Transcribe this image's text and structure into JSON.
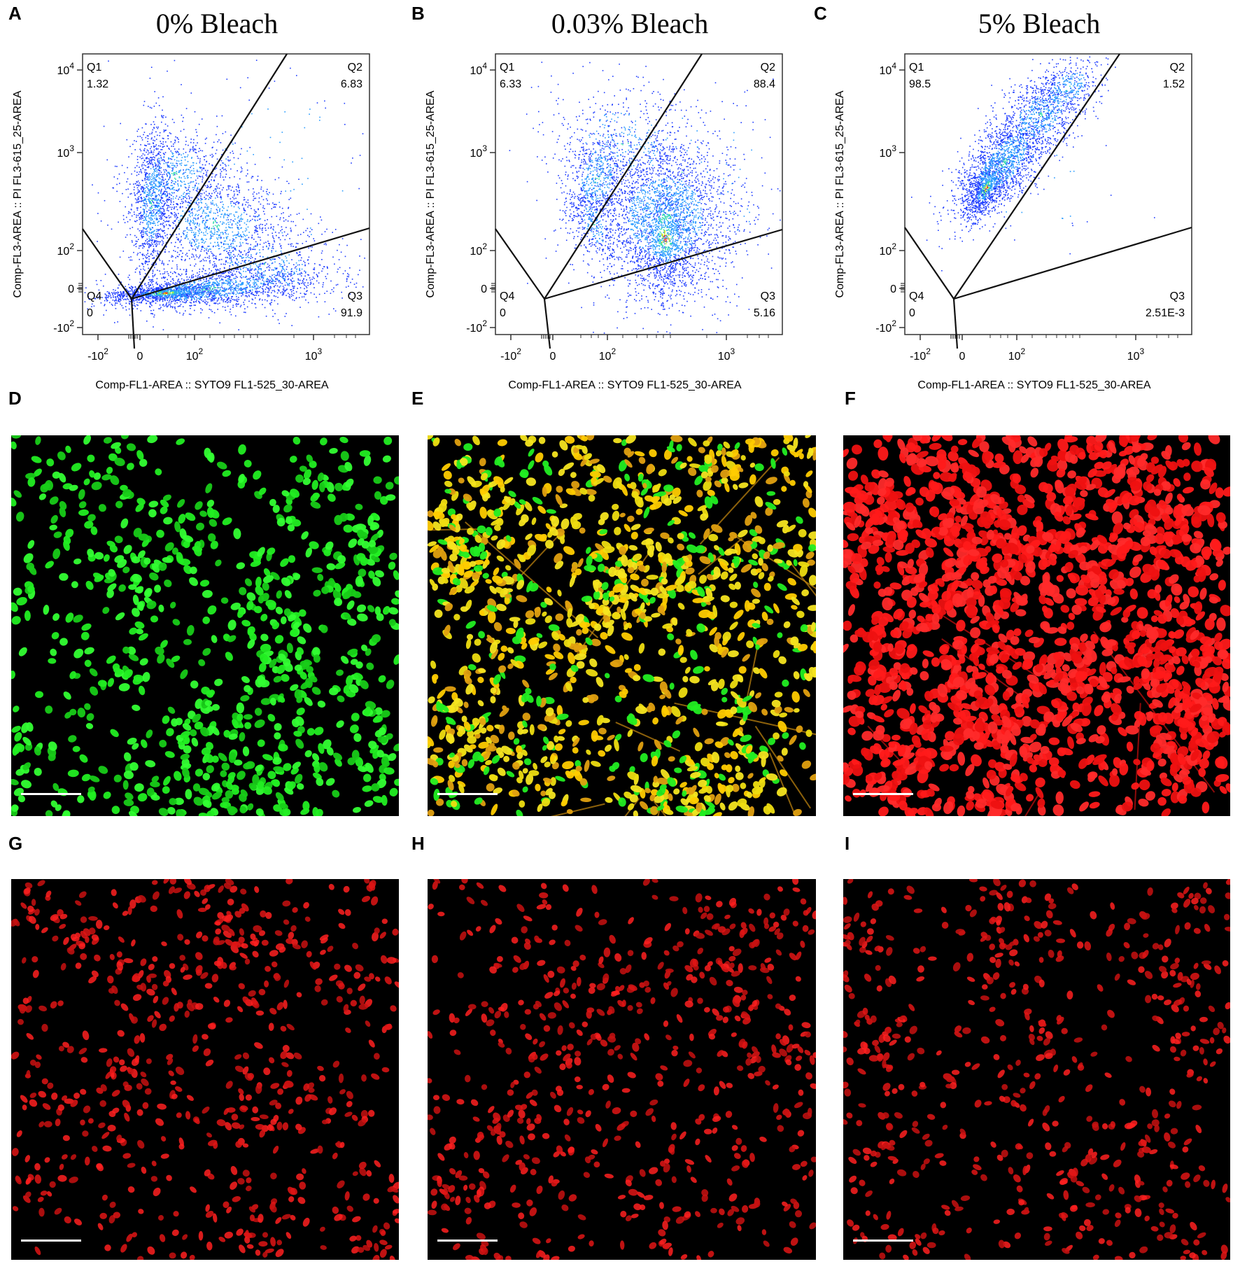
{
  "colors": {
    "background": "#ffffff",
    "plot_frame": "#333333",
    "gate": "#111111",
    "density_low": "#1f3dff",
    "density_mid": "#33ddaa",
    "density_high": "#ff2200",
    "green_stain": "#22ee22",
    "yellow_stain": "#eedd11",
    "red_stain": "#ff1a1a",
    "dim_red_stain": "#e01515",
    "micro_background": "#000000",
    "scalebar": "#ffffff"
  },
  "panels": [
    {
      "letter": "A"
    },
    {
      "letter": "B"
    },
    {
      "letter": "C"
    },
    {
      "letter": "D"
    },
    {
      "letter": "E"
    },
    {
      "letter": "F"
    },
    {
      "letter": "G"
    },
    {
      "letter": "H"
    },
    {
      "letter": "I"
    }
  ],
  "chart_data": [
    {
      "type": "scatter",
      "panel": "A",
      "title": "0% Bleach",
      "xlabel": "Comp-FL1-AREA :: SYTO9 FL1-525_30-AREA",
      "ylabel": "Comp-FL3-AREA :: PI FL3-615_25-AREA",
      "x_ticks": [
        "-10^2",
        "0",
        "10^2",
        "10^3"
      ],
      "y_ticks": [
        "10^4",
        "10^3",
        "10^2",
        "0",
        "-10^2"
      ],
      "scale": "biexponential",
      "quadrants": [
        {
          "name": "Q1",
          "value": "1.32"
        },
        {
          "name": "Q2",
          "value": "6.83"
        },
        {
          "name": "Q3",
          "value": "91.9"
        },
        {
          "name": "Q4",
          "value": "0"
        }
      ]
    },
    {
      "type": "scatter",
      "panel": "B",
      "title": "0.03% Bleach",
      "xlabel": "Comp-FL1-AREA :: SYTO9 FL1-525_30-AREA",
      "ylabel": "Comp-FL3-AREA :: PI FL3-615_25-AREA",
      "x_ticks": [
        "-10^2",
        "0",
        "10^2",
        "10^3"
      ],
      "y_ticks": [
        "10^4",
        "10^3",
        "10^2",
        "0",
        "-10^2"
      ],
      "scale": "biexponential",
      "quadrants": [
        {
          "name": "Q1",
          "value": "6.33"
        },
        {
          "name": "Q2",
          "value": "88.4"
        },
        {
          "name": "Q3",
          "value": "5.16"
        },
        {
          "name": "Q4",
          "value": "0"
        }
      ]
    },
    {
      "type": "scatter",
      "panel": "C",
      "title": "5% Bleach",
      "xlabel": "Comp-FL1-AREA :: SYTO9 FL1-525_30-AREA",
      "ylabel": "Comp-FL3-AREA :: PI FL3-615_25-AREA",
      "x_ticks": [
        "-10^2",
        "0",
        "10^2",
        "10^3"
      ],
      "y_ticks": [
        "10^4",
        "10^3",
        "10^2",
        "0",
        "-10^2"
      ],
      "scale": "biexponential",
      "quadrants": [
        {
          "name": "Q1",
          "value": "98.5"
        },
        {
          "name": "Q2",
          "value": "1.52"
        },
        {
          "name": "Q3",
          "value": "2.51E-3"
        },
        {
          "name": "Q4",
          "value": "0"
        }
      ]
    }
  ],
  "micrographs": [
    {
      "panel": "D",
      "stain": "green",
      "scale_bar": true
    },
    {
      "panel": "E",
      "stain": "yellow-green",
      "scale_bar": true
    },
    {
      "panel": "F",
      "stain": "red",
      "scale_bar": true
    },
    {
      "panel": "G",
      "stain": "dim-red",
      "scale_bar": true
    },
    {
      "panel": "H",
      "stain": "dim-red",
      "scale_bar": true
    },
    {
      "panel": "I",
      "stain": "dim-red",
      "scale_bar": true
    }
  ]
}
